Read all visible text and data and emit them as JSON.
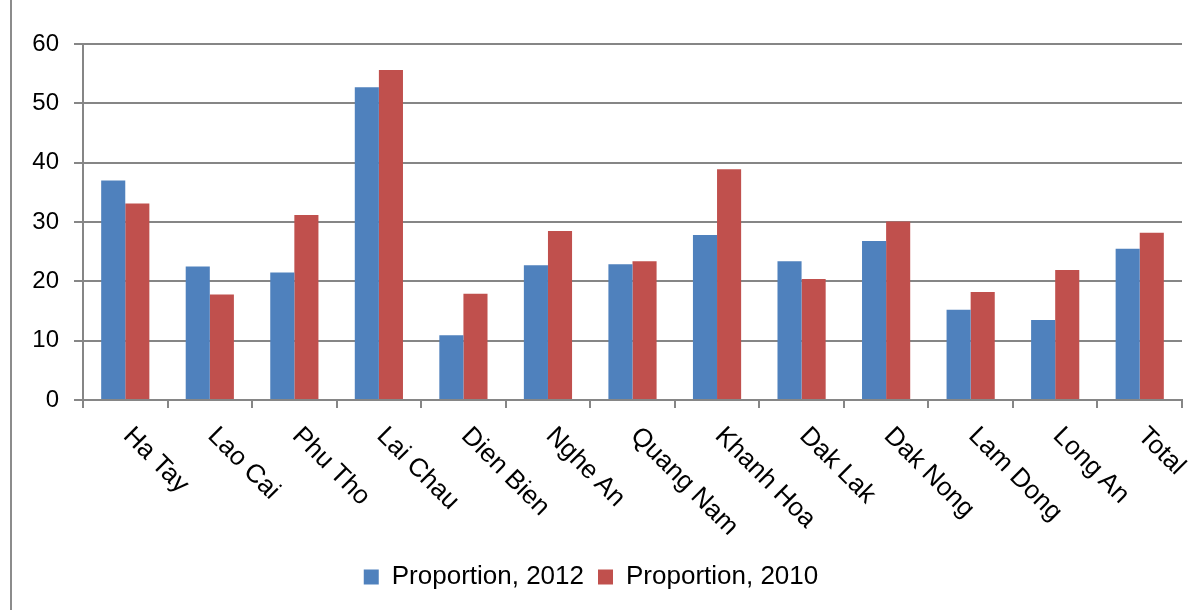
{
  "chart_data": {
    "type": "bar",
    "categories": [
      "Ha Tay",
      "Lao Cai",
      "Phu Tho",
      "Lai Chau",
      "Dien Bien",
      "Nghe An",
      "Quang Nam",
      "Khanh Hoa",
      "Dak Lak",
      "Dak Nong",
      "Lam Dong",
      "Long An",
      "Total"
    ],
    "series": [
      {
        "name": "Proportion, 2012",
        "color": "#4f81bd",
        "values": [
          37.0,
          22.5,
          21.5,
          52.7,
          10.9,
          22.7,
          22.9,
          27.8,
          23.4,
          26.8,
          15.2,
          13.5,
          25.5
        ]
      },
      {
        "name": "Proportion, 2010",
        "color": "#c0504d",
        "values": [
          33.1,
          17.8,
          31.2,
          55.6,
          17.9,
          28.5,
          23.4,
          38.9,
          20.4,
          30.1,
          18.2,
          21.9,
          28.2
        ]
      }
    ],
    "ylim": [
      0,
      60
    ],
    "yticks": [
      0,
      10,
      20,
      30,
      40,
      50,
      60
    ],
    "grid": "y",
    "legend": "bottom"
  }
}
